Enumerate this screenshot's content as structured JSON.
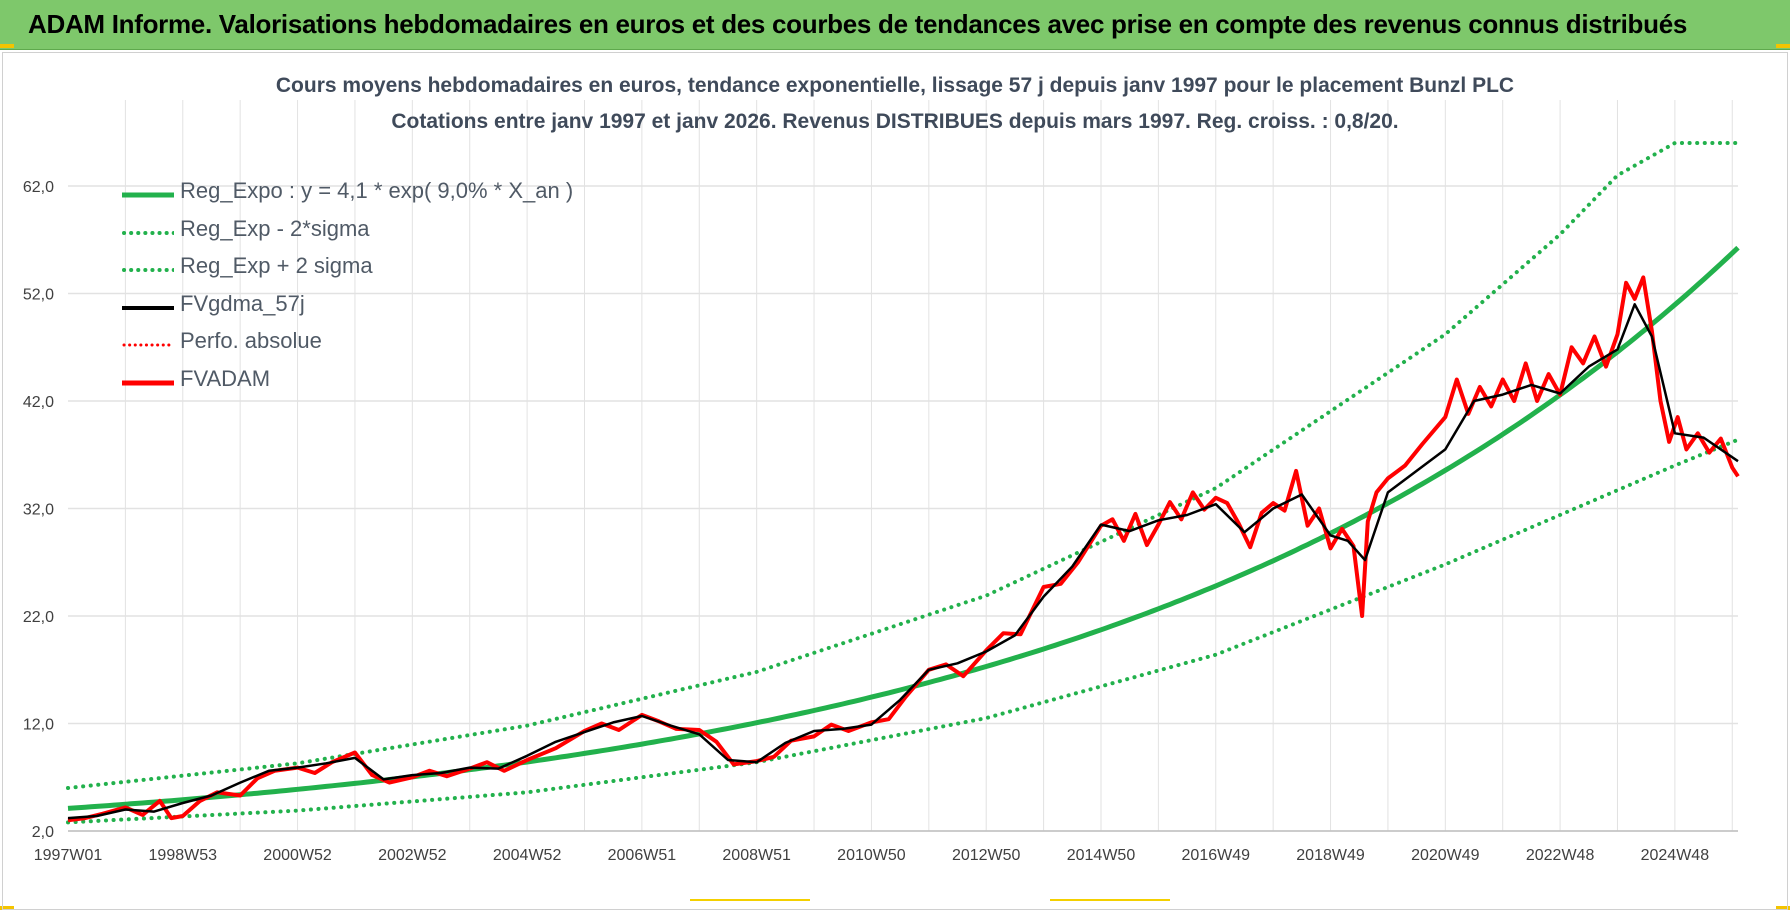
{
  "header": {
    "title": "ADAM Informe. Valorisations hebdomadaires en euros et des courbes de tendances avec prise en compte des revenus connus distribués"
  },
  "colors": {
    "header_bg": "#7ec86b",
    "trend": "#22b14c",
    "sigma_bands": "#22b14c",
    "fvgdma": "#000000",
    "fvadam": "#ff0000",
    "perfo": "#ff0000",
    "grid": "#e2e2e2",
    "axis_text": "#404040"
  },
  "chart_data": {
    "type": "line",
    "title": "Cours moyens hebdomadaires en euros, tendance exponentielle, lissage 57 j depuis janv 1997 pour le placement Bunzl PLC",
    "subtitle": "Cotations entre janv 1997 et janv 2026. Revenus DISTRIBUES depuis mars 1997. Reg. croiss. : 0,8/20.",
    "xlabel": "",
    "ylabel": "",
    "xlim": [
      1997.0,
      2026.1
    ],
    "ylim": [
      2.0,
      70.0
    ],
    "grid": true,
    "legend_position": "top-left",
    "y_ticks": [
      "62,0",
      "52,0",
      "42,0",
      "32,0",
      "22,0",
      "12,0",
      "2,0"
    ],
    "y_tick_values": [
      62,
      52,
      42,
      32,
      22,
      12,
      2
    ],
    "x_ticks": [
      "1997W01",
      "1998W53",
      "2000W52",
      "2002W52",
      "2004W52",
      "2006W51",
      "2008W51",
      "2010W50",
      "2012W50",
      "2014W50",
      "2016W49",
      "2018W49",
      "2020W49",
      "2022W48",
      "2024W48"
    ],
    "x_tick_values": [
      1997.0,
      1999.0,
      2001.0,
      2003.0,
      2005.0,
      2007.0,
      2009.0,
      2011.0,
      2013.0,
      2015.0,
      2017.0,
      2019.0,
      2021.0,
      2023.0,
      2025.0
    ],
    "trend_curve": {
      "a": 4.1,
      "rate": 0.09
    },
    "series": [
      {
        "name": "Reg_Expo : y = 4,1 * exp( 9,0% *  X_an )",
        "style": "solid-thick",
        "color": "#22b14c"
      },
      {
        "name": "Reg_Exp - 2*sigma",
        "style": "dotted",
        "color": "#22b14c",
        "x": [
          1997.0,
          2001.0,
          2005.0,
          2009.0,
          2013.0,
          2017.0,
          2021.0,
          2024.0,
          2025.0,
          2026.1
        ],
        "y": [
          2.8,
          3.9,
          5.6,
          8.4,
          12.5,
          18.4,
          26.8,
          33.7,
          36.0,
          38.4
        ]
      },
      {
        "name": "Reg_Exp + 2 sigma",
        "style": "dotted",
        "color": "#22b14c",
        "x": [
          1997.0,
          2001.0,
          2005.0,
          2009.0,
          2013.0,
          2017.0,
          2021.0,
          2023.0,
          2024.0,
          2025.0,
          2026.1
        ],
        "y": [
          6.0,
          8.3,
          11.8,
          16.8,
          23.9,
          33.9,
          48.2,
          57.5,
          63.0,
          66.0,
          66.0
        ]
      },
      {
        "name": "FVgdma_57j",
        "style": "solid",
        "color": "#000000",
        "x": [
          1997.0,
          1997.5,
          1998.0,
          1998.5,
          1999.0,
          1999.5,
          2000.0,
          2000.5,
          2001.0,
          2001.5,
          2002.0,
          2002.5,
          2003.0,
          2003.5,
          2004.0,
          2004.5,
          2005.0,
          2005.5,
          2006.0,
          2006.5,
          2007.0,
          2007.5,
          2008.0,
          2008.5,
          2009.0,
          2009.5,
          2010.0,
          2010.5,
          2011.0,
          2011.5,
          2012.0,
          2012.5,
          2013.0,
          2013.5,
          2014.0,
          2014.5,
          2015.0,
          2015.5,
          2016.0,
          2016.5,
          2017.0,
          2017.5,
          2018.0,
          2018.5,
          2019.0,
          2019.3,
          2019.6,
          2020.0,
          2020.5,
          2021.0,
          2021.5,
          2022.0,
          2022.5,
          2023.0,
          2023.5,
          2024.0,
          2024.3,
          2024.6,
          2025.0,
          2025.5,
          2026.1
        ],
        "y": [
          3.2,
          3.4,
          4.0,
          3.8,
          4.6,
          5.3,
          6.5,
          7.6,
          7.9,
          8.3,
          8.8,
          6.8,
          7.2,
          7.4,
          7.9,
          7.8,
          9.0,
          10.3,
          11.2,
          12.1,
          12.7,
          11.8,
          11.0,
          8.6,
          8.4,
          10.2,
          11.3,
          11.5,
          11.9,
          14.2,
          17.0,
          17.6,
          18.7,
          20.2,
          23.8,
          26.6,
          30.5,
          29.9,
          30.9,
          31.4,
          32.4,
          29.8,
          32.0,
          33.3,
          29.5,
          29.0,
          27.2,
          33.5,
          35.5,
          37.5,
          42.0,
          42.6,
          43.5,
          42.7,
          45.2,
          46.8,
          51.0,
          48.0,
          39.0,
          38.6,
          36.4
        ]
      },
      {
        "name": "Perfo. absolue",
        "style": "dotted",
        "color": "#ff0000"
      },
      {
        "name": "FVADAM",
        "style": "solid-thick",
        "color": "#ff0000",
        "x": [
          1997.0,
          1997.3,
          1997.6,
          1998.0,
          1998.3,
          1998.6,
          1998.8,
          1999.0,
          1999.3,
          1999.6,
          2000.0,
          2000.3,
          2000.6,
          2001.0,
          2001.3,
          2001.6,
          2002.0,
          2002.3,
          2002.6,
          2003.0,
          2003.3,
          2003.6,
          2004.0,
          2004.3,
          2004.6,
          2005.0,
          2005.5,
          2006.0,
          2006.3,
          2006.6,
          2007.0,
          2007.3,
          2007.6,
          2008.0,
          2008.3,
          2008.6,
          2009.0,
          2009.3,
          2009.6,
          2010.0,
          2010.3,
          2010.6,
          2011.0,
          2011.3,
          2011.6,
          2012.0,
          2012.3,
          2012.6,
          2013.0,
          2013.3,
          2013.6,
          2014.0,
          2014.3,
          2014.6,
          2015.0,
          2015.2,
          2015.4,
          2015.6,
          2015.8,
          2016.0,
          2016.2,
          2016.4,
          2016.6,
          2016.8,
          2017.0,
          2017.2,
          2017.4,
          2017.6,
          2017.8,
          2018.0,
          2018.2,
          2018.4,
          2018.6,
          2018.8,
          2019.0,
          2019.2,
          2019.4,
          2019.55,
          2019.65,
          2019.8,
          2020.0,
          2020.3,
          2020.6,
          2021.0,
          2021.2,
          2021.4,
          2021.6,
          2021.8,
          2022.0,
          2022.2,
          2022.4,
          2022.6,
          2022.8,
          2023.0,
          2023.2,
          2023.4,
          2023.6,
          2023.8,
          2024.0,
          2024.15,
          2024.3,
          2024.45,
          2024.6,
          2024.75,
          2024.9,
          2025.05,
          2025.2,
          2025.4,
          2025.6,
          2025.8,
          2026.0,
          2026.1
        ],
        "y": [
          3.0,
          3.2,
          3.6,
          4.2,
          3.5,
          4.8,
          3.2,
          3.4,
          4.8,
          5.6,
          5.3,
          6.9,
          7.6,
          7.9,
          7.4,
          8.4,
          9.3,
          7.2,
          6.5,
          7.0,
          7.6,
          7.1,
          7.8,
          8.4,
          7.6,
          8.6,
          9.7,
          11.3,
          12.0,
          11.4,
          12.8,
          12.2,
          11.5,
          11.4,
          10.3,
          8.2,
          8.5,
          8.9,
          10.4,
          10.8,
          11.9,
          11.3,
          12.1,
          12.4,
          14.5,
          17.0,
          17.5,
          16.4,
          18.8,
          20.4,
          20.3,
          24.7,
          25.0,
          27.0,
          30.4,
          31.0,
          29.0,
          31.5,
          28.6,
          30.5,
          32.6,
          31.0,
          33.5,
          31.9,
          33.0,
          32.5,
          30.6,
          28.4,
          31.6,
          32.5,
          31.8,
          35.5,
          30.4,
          32.0,
          28.3,
          30.1,
          28.5,
          22.0,
          30.8,
          33.5,
          34.8,
          36.0,
          38.0,
          40.5,
          44.0,
          40.8,
          43.3,
          41.5,
          44.0,
          42.0,
          45.5,
          42.0,
          44.5,
          42.6,
          47.0,
          45.5,
          48.0,
          45.2,
          48.2,
          53.0,
          51.5,
          53.5,
          48.5,
          42.0,
          38.2,
          40.5,
          37.5,
          39.0,
          37.2,
          38.5,
          35.8,
          35.0
        ]
      }
    ]
  }
}
